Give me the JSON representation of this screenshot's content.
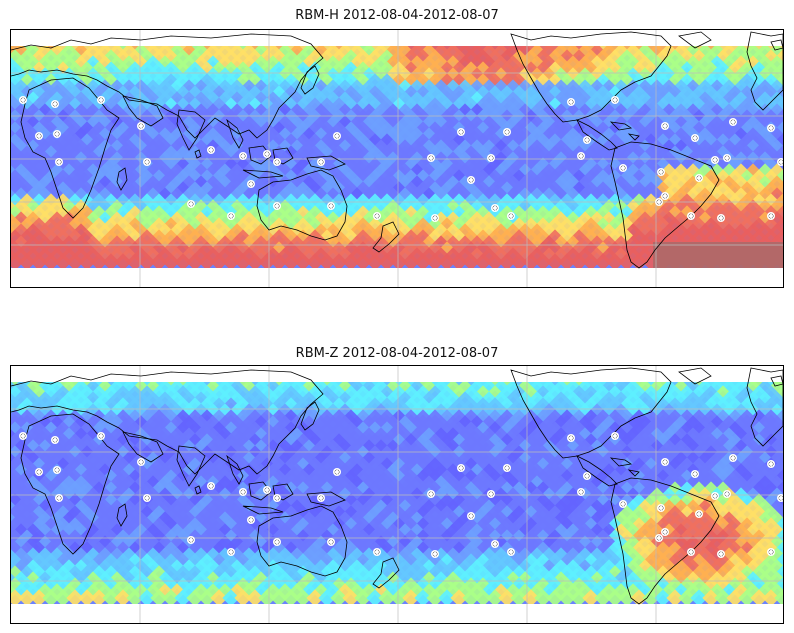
{
  "figure": {
    "panels": [
      {
        "title": "RBM-H 2012-08-04-2012-08-07",
        "field": "H"
      },
      {
        "title": "RBM-Z 2012-08-04-2012-08-07",
        "field": "Z"
      }
    ]
  },
  "colors": {
    "low": "#6464ff",
    "mid_low": "#6ea0ff",
    "cyan": "#5ef0ff",
    "green": "#aaff88",
    "yellow": "#ffe066",
    "orange": "#ffa050",
    "red": "#f06060",
    "dark_red": "#b06868",
    "coast": "#000000",
    "grid": "#c8c8c8"
  },
  "station_markers_description": "white dotted station markers",
  "map_projection": "equirectangular, latitude roughly 60N to 60S, longitude 20W to 340E"
}
